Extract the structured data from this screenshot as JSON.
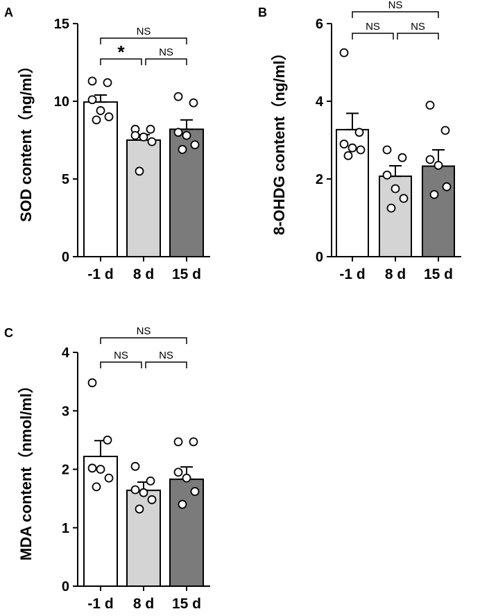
{
  "chart_data": [
    {
      "panel": "A",
      "type": "bar",
      "ylabel": "SOD content（ng/ml）",
      "ylim": [
        0,
        15
      ],
      "yticks": [
        0,
        5,
        10,
        15
      ],
      "categories": [
        "-1 d",
        "8 d",
        "15 d"
      ],
      "means": [
        9.95,
        7.5,
        8.2
      ],
      "sem": [
        0.45,
        0.35,
        0.6
      ],
      "bar_colors": [
        "#ffffff",
        "#d4d4d4",
        "#7b7b7b"
      ],
      "points": [
        [
          11.3,
          11.2,
          10.1,
          9.4,
          9.0,
          8.8
        ],
        [
          8.2,
          8.2,
          7.8,
          7.7,
          7.4,
          5.5
        ],
        [
          10.3,
          9.9,
          8.0,
          7.8,
          7.2,
          6.9
        ]
      ],
      "brackets": [
        {
          "from": 0,
          "to": 1,
          "label": "*"
        },
        {
          "from": 1,
          "to": 2,
          "label": "NS"
        },
        {
          "from": 0,
          "to": 2,
          "label": "NS"
        }
      ]
    },
    {
      "panel": "B",
      "type": "bar",
      "ylabel": "8-OHDG content（ng/ml）",
      "ylim": [
        0,
        6
      ],
      "yticks": [
        0,
        2,
        4,
        6
      ],
      "categories": [
        "-1 d",
        "8 d",
        "15 d"
      ],
      "means": [
        3.27,
        2.07,
        2.33
      ],
      "sem": [
        0.42,
        0.27,
        0.42
      ],
      "bar_colors": [
        "#ffffff",
        "#d4d4d4",
        "#7b7b7b"
      ],
      "points": [
        [
          5.25,
          3.2,
          2.9,
          2.8,
          2.75,
          2.6
        ],
        [
          2.75,
          2.55,
          2.1,
          1.75,
          1.5,
          1.25
        ],
        [
          3.9,
          3.25,
          2.5,
          2.35,
          1.8,
          1.6
        ]
      ],
      "brackets": [
        {
          "from": 0,
          "to": 1,
          "label": "NS"
        },
        {
          "from": 1,
          "to": 2,
          "label": "NS"
        },
        {
          "from": 0,
          "to": 2,
          "label": "NS"
        }
      ]
    },
    {
      "panel": "C",
      "type": "bar",
      "ylabel": "MDA content（nmol/ml）",
      "ylim": [
        0,
        4
      ],
      "yticks": [
        0,
        1,
        2,
        3,
        4
      ],
      "categories": [
        "-1 d",
        "8 d",
        "15 d"
      ],
      "means": [
        2.22,
        1.64,
        1.83
      ],
      "sem": [
        0.27,
        0.14,
        0.21
      ],
      "bar_colors": [
        "#ffffff",
        "#d4d4d4",
        "#7b7b7b"
      ],
      "points": [
        [
          3.48,
          2.5,
          2.02,
          2.0,
          1.85,
          1.7
        ],
        [
          2.05,
          1.8,
          1.65,
          1.6,
          1.48,
          1.32
        ],
        [
          2.47,
          2.47,
          1.95,
          1.85,
          1.62,
          1.4
        ]
      ],
      "brackets": [
        {
          "from": 0,
          "to": 1,
          "label": "NS"
        },
        {
          "from": 1,
          "to": 2,
          "label": "NS"
        },
        {
          "from": 0,
          "to": 2,
          "label": "NS"
        }
      ]
    }
  ]
}
